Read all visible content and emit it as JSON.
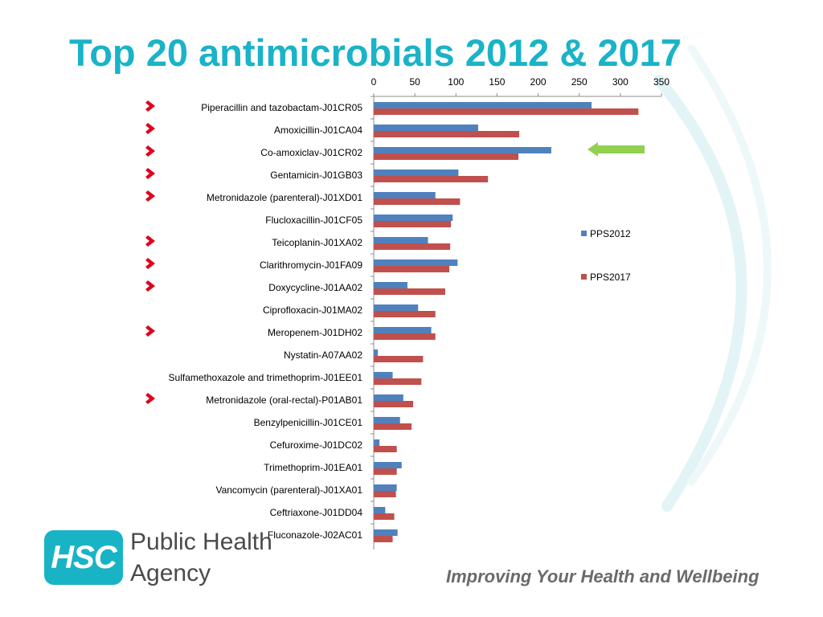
{
  "slide": {
    "title": "Top 20 antimicrobials 2012 & 2017",
    "org_line1": "Public Health",
    "org_line2": "Agency",
    "logo_text": "HSC",
    "tagline": "Improving Your Health and Wellbeing"
  },
  "colors": {
    "title": "#1ab3c8",
    "series_2012": "#4f81bd",
    "series_2017": "#c0504d",
    "marker": "#e0001b",
    "arrow": "#92d050",
    "logo": "#19b3c6"
  },
  "icons": {
    "marker": "chevron-right-icon",
    "highlight": "arrow-left-icon"
  },
  "chart_data": {
    "type": "bar",
    "orientation": "horizontal",
    "categories": [
      "Piperacillin and tazobactam-J01CR05",
      "Amoxicillin-J01CA04",
      "Co-amoxiclav-J01CR02",
      "Gentamicin-J01GB03",
      "Metronidazole (parenteral)-J01XD01",
      "Flucloxacillin-J01CF05",
      "Teicoplanin-J01XA02",
      "Clarithromycin-J01FA09",
      "Doxycycline-J01AA02",
      "Ciprofloxacin-J01MA02",
      "Meropenem-J01DH02",
      "Nystatin-A07AA02",
      "Sulfamethoxazole and trimethoprim-J01EE01",
      "Metronidazole (oral-rectal)-P01AB01",
      "Benzylpenicillin-J01CE01",
      "Cefuroxime-J01DC02",
      "Trimethoprim-J01EA01",
      "Vancomycin (parenteral)-J01XA01",
      "Ceftriaxone-J01DD04",
      "Fluconazole-J02AC01"
    ],
    "series": [
      {
        "name": "PPS2012",
        "values": [
          265,
          127,
          216,
          103,
          75,
          96,
          66,
          102,
          41,
          54,
          70,
          5,
          23,
          36,
          32,
          7,
          34,
          28,
          14,
          29
        ]
      },
      {
        "name": "PPS2017",
        "values": [
          322,
          177,
          176,
          139,
          105,
          94,
          93,
          92,
          87,
          75,
          75,
          60,
          58,
          48,
          46,
          28,
          28,
          27,
          25,
          23
        ]
      }
    ],
    "xlim": [
      0,
      350
    ],
    "xticks": [
      0,
      50,
      100,
      150,
      200,
      250,
      300,
      350
    ],
    "tick_position": "top",
    "legend": "right",
    "grid": false,
    "marked_rows": [
      0,
      1,
      2,
      3,
      4,
      6,
      7,
      8,
      10,
      13
    ],
    "highlighted_row": 2
  }
}
